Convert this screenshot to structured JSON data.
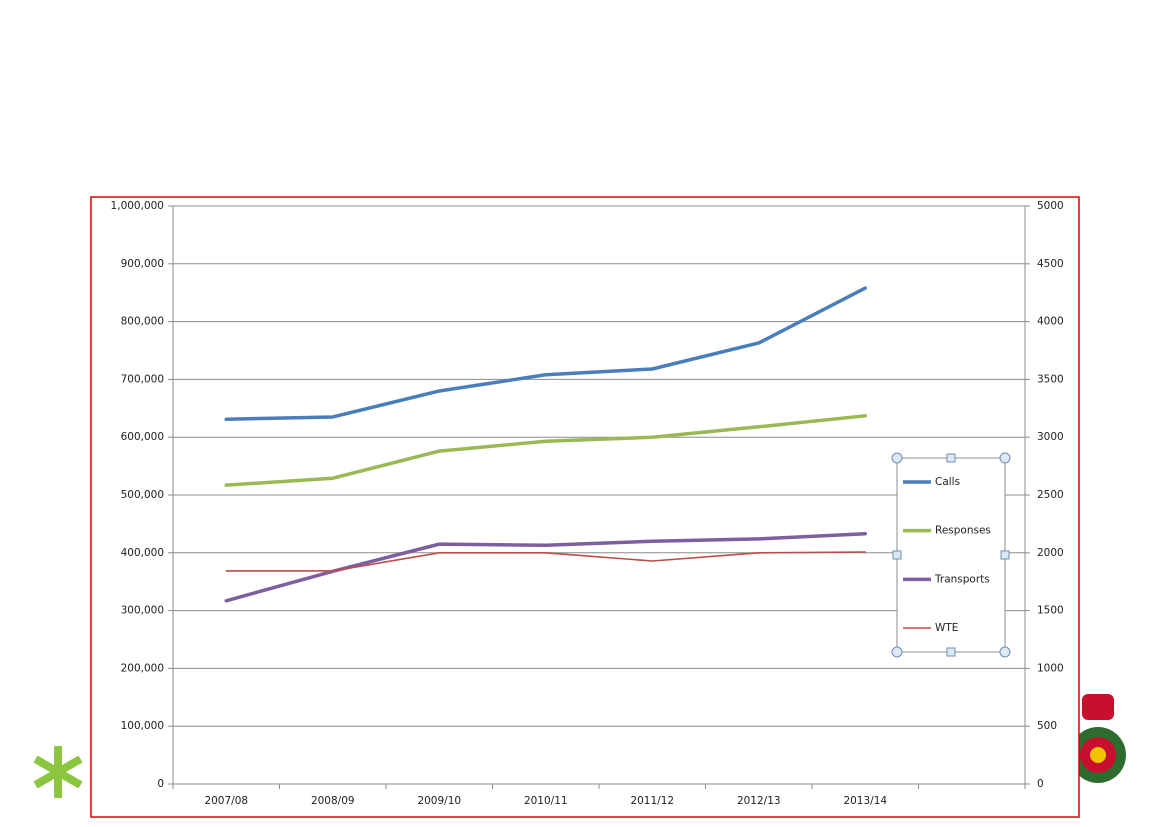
{
  "chart_data": {
    "type": "line",
    "categories": [
      "2007/08",
      "2008/09",
      "2009/10",
      "2010/11",
      "2011/12",
      "2012/13",
      "2013/14",
      null
    ],
    "series": [
      {
        "name": "Calls",
        "color": "#4a7ebb",
        "values": [
          631000,
          635000,
          680000,
          708000,
          718000,
          763000,
          858000,
          null
        ]
      },
      {
        "name": "Responses",
        "color": "#98b954",
        "values": [
          517000,
          529000,
          576000,
          593000,
          600000,
          618000,
          637000,
          null
        ]
      },
      {
        "name": "Transports",
        "color": "#7d5fa0",
        "values": [
          317000,
          368000,
          415000,
          413000,
          420000,
          424000,
          433000,
          null
        ]
      },
      {
        "name": "WTE",
        "color": "#be4b48",
        "axis": "y2",
        "values": [
          1843,
          1843,
          2000,
          2000,
          1929,
          2000,
          2007,
          null
        ]
      }
    ],
    "ylim": [
      0,
      1000000
    ],
    "yticks": [
      0,
      {
        "value": 100000,
        "label": "100,000"
      },
      {
        "value": 200000,
        "label": "200,000"
      },
      {
        "value": 300000,
        "label": "300,000"
      },
      {
        "value": 400000,
        "label": "400,000"
      },
      {
        "value": 500000,
        "label": "500,000"
      },
      {
        "value": 600000,
        "label": "600,000"
      },
      {
        "value": 700000,
        "label": "700,000"
      },
      {
        "value": 800000,
        "label": "800,000"
      },
      {
        "value": 900000,
        "label": "900,000"
      },
      {
        "value": 1000000,
        "label": "1,000,000"
      }
    ],
    "y2lim": [
      0,
      5000
    ],
    "y2ticks": [
      0,
      500,
      1000,
      1500,
      2000,
      2500,
      3000,
      3500,
      4000,
      4500,
      5000
    ],
    "grid": true,
    "legend": "right"
  }
}
